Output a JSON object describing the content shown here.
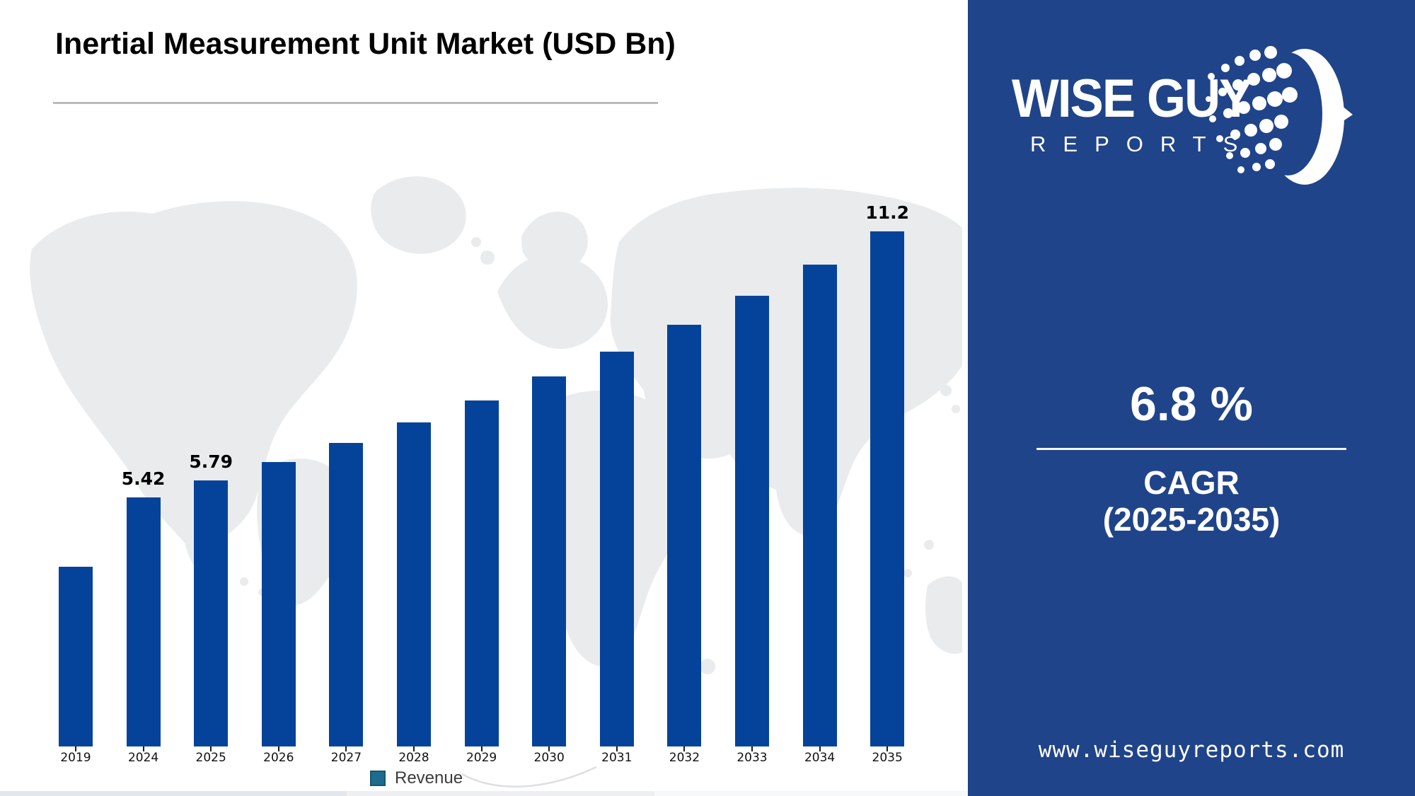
{
  "title": "Inertial Measurement Unit Market (USD Bn)",
  "chart_data": {
    "type": "bar",
    "title": "Inertial Measurement Unit Market (USD Bn)",
    "xlabel": "",
    "ylabel": "",
    "categories": [
      "2019",
      "2024",
      "2025",
      "2026",
      "2027",
      "2028",
      "2029",
      "2030",
      "2031",
      "2032",
      "2033",
      "2034",
      "2035"
    ],
    "values": [
      3.9,
      5.42,
      5.79,
      6.18,
      6.6,
      7.05,
      7.53,
      8.04,
      8.59,
      9.17,
      9.8,
      10.48,
      11.2
    ],
    "data_labels": {
      "2024": "5.42",
      "2025": "5.79",
      "2035": "11.2"
    },
    "ylim": [
      0,
      11.9
    ],
    "grid": false,
    "legend_entries": [
      "Revenue"
    ],
    "legend_position": "bottom",
    "bar_color": "#05439a",
    "legend_swatch_color": "#1d6b8e"
  },
  "legend": {
    "label": "Revenue"
  },
  "panel": {
    "brand_line1": "WISE GUY",
    "brand_line2": "REPORTS",
    "cagr_value": "6.8 %",
    "cagr_line1": "CAGR",
    "cagr_line2": "(2025-2035)",
    "website": "www.wiseguyreports.com",
    "bg_color": "#20448a"
  },
  "colors": {
    "bar": "#05439a",
    "panel": "#20448a",
    "map": "#e9ebed",
    "underline": "#b9bcbf"
  }
}
